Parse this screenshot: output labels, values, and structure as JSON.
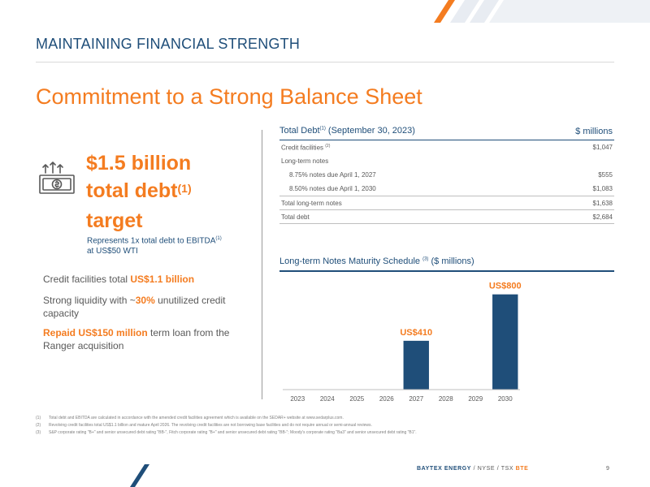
{
  "header": {
    "section_title": "MAINTAINING FINANCIAL STRENGTH",
    "main_title": "Commitment to a Strong Balance Sheet"
  },
  "target": {
    "icon": "money-growth-icon",
    "line1": "$1.5 billion",
    "line2": "total debt",
    "line2_sup": "(1)",
    "line3": "target",
    "sub_line1": "Represents 1x total debt to EBITDA",
    "sub_sup": "(1)",
    "sub_line2": "at US$50 WTI"
  },
  "bullets": [
    {
      "pre": "Credit facilities total ",
      "hl": "US$1.1 billion",
      "post": ""
    },
    {
      "pre": "Strong liquidity with ~",
      "hl": "30%",
      "post": " unutilized credit capacity"
    },
    {
      "pre": "",
      "hl": "Repaid US$150 million",
      "post": " term loan from the Ranger acquisition"
    }
  ],
  "debt_table": {
    "title": "Total Debt",
    "title_sup": "(1)",
    "title_suffix": " (September 30, 2023)",
    "units": "$ millions",
    "rows": [
      {
        "label": "Credit facilities",
        "sup": "(2)",
        "value": "$1,047"
      },
      {
        "label": "Long-term notes",
        "sup": "",
        "value": ""
      },
      {
        "label": "8.75% notes due April 1, 2027",
        "sup": "",
        "value": "$555"
      },
      {
        "label": "8.50% notes due April 1, 2030",
        "sup": "",
        "value": "$1,083"
      },
      {
        "label": "Total long-term notes",
        "sup": "",
        "value": "$1,638"
      },
      {
        "label": "Total debt",
        "sup": "",
        "value": "$2,684"
      }
    ]
  },
  "chart_title": {
    "text": "Long-term Notes Maturity Schedule",
    "sup": "(3)",
    "suffix": " ($ millions)"
  },
  "chart_data": {
    "type": "bar",
    "categories": [
      "2023",
      "2024",
      "2025",
      "2026",
      "2027",
      "2028",
      "2029",
      "2030"
    ],
    "values": [
      0,
      0,
      0,
      0,
      410,
      0,
      0,
      800
    ],
    "data_labels": [
      "",
      "",
      "",
      "",
      "US$410",
      "",
      "",
      "US$800"
    ],
    "title": "Long-term Notes Maturity Schedule (3) ($ millions)",
    "xlabel": "",
    "ylabel": "",
    "ylim": [
      0,
      900
    ],
    "grid": false,
    "bar_color": "#1f4e79",
    "label_color": "#f47c20"
  },
  "footnotes": [
    {
      "num": "(1)",
      "text": "Total debt and EBITDA are calculated in accordance with the amended credit facilities agreement which is available on the SEDAR+ website at www.sedarplus.com."
    },
    {
      "num": "(2)",
      "text": "Revolving credit facilities total US$1.1 billion and mature April 2026. The revolving credit facilities are not borrowing base facilities and do not require annual or semi-annual reviews."
    },
    {
      "num": "(3)",
      "text": "S&P corporate rating \"B+\" and senior unsecured debt rating \"BB-\", Fitch corporate rating \"B+\" and senior unsecured debt rating \"BB-\"; Moody's corporate rating \"Ba3\" and senior unsecured debt rating \"B1\"."
    }
  ],
  "footer": {
    "company": "BAYTEX ENERGY",
    "sep": " / ",
    "nyse": "NYSE",
    "tsx": "TSX",
    "ticker": "BTE",
    "page": "9"
  },
  "colors": {
    "navy": "#1f4e79",
    "orange": "#f47c20",
    "text": "#595959"
  }
}
